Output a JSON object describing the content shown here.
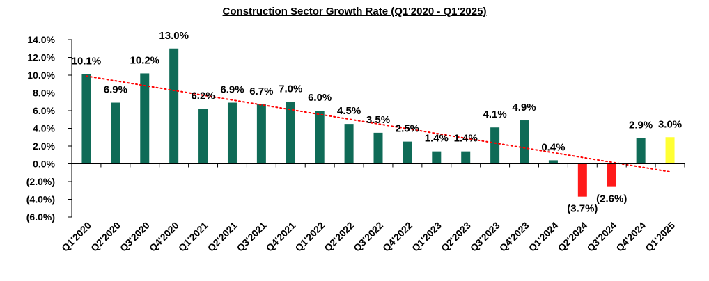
{
  "chart_data": {
    "type": "bar",
    "title": "Construction Sector Growth Rate (Q1'2020 -  Q1'2025)",
    "xlabel": "",
    "ylabel": "",
    "ylim": [
      -6.0,
      14.0
    ],
    "ytick_values": [
      14,
      12,
      10,
      8,
      6,
      4,
      2,
      0,
      -2,
      -4,
      -6
    ],
    "ytick_labels": [
      "14.0%",
      "12.0%",
      "10.0%",
      "8.0%",
      "6.0%",
      "4.0%",
      "2.0%",
      "0.0%",
      "(2.0%)",
      "(4.0%)",
      "(6.0%)"
    ],
    "categories": [
      "Q1'2020",
      "Q2'2020",
      "Q3'2020",
      "Q4'2020",
      "Q1'2021",
      "Q2'2021",
      "Q3'2021",
      "Q4'2021",
      "Q1'2022",
      "Q2'2022",
      "Q3'2022",
      "Q4'2022",
      "Q1'2023",
      "Q2'2023",
      "Q3'2023",
      "Q4'2023",
      "Q1'2024",
      "Q2'2024",
      "Q3'2024",
      "Q4'2024",
      "Q1'2025"
    ],
    "values": [
      10.1,
      6.9,
      10.2,
      13.0,
      6.2,
      6.9,
      6.7,
      7.0,
      6.0,
      4.5,
      3.5,
      2.5,
      1.4,
      1.4,
      4.1,
      4.9,
      0.4,
      -3.7,
      -2.6,
      2.9,
      3.0
    ],
    "data_labels": [
      "10.1%",
      "6.9%",
      "10.2%",
      "13.0%",
      "6.2%",
      "6.9%",
      "6.7%",
      "7.0%",
      "6.0%",
      "4.5%",
      "3.5%",
      "2.5%",
      "1.4%",
      "1.4%",
      "4.1%",
      "4.9%",
      "0.4%",
      "(3.7%)",
      "(2.6%)",
      "2.9%",
      "3.0%"
    ],
    "colors": {
      "positive": "#0f6b57",
      "negative": "#ff1a1a",
      "highlight": "#ffff33",
      "trendline": "#ff0000"
    },
    "highlight_index": 20,
    "trendline": {
      "type": "linear",
      "style": "dotted",
      "start_value": 9.9,
      "end_value": -0.9
    },
    "grid": false,
    "legend": "none"
  }
}
